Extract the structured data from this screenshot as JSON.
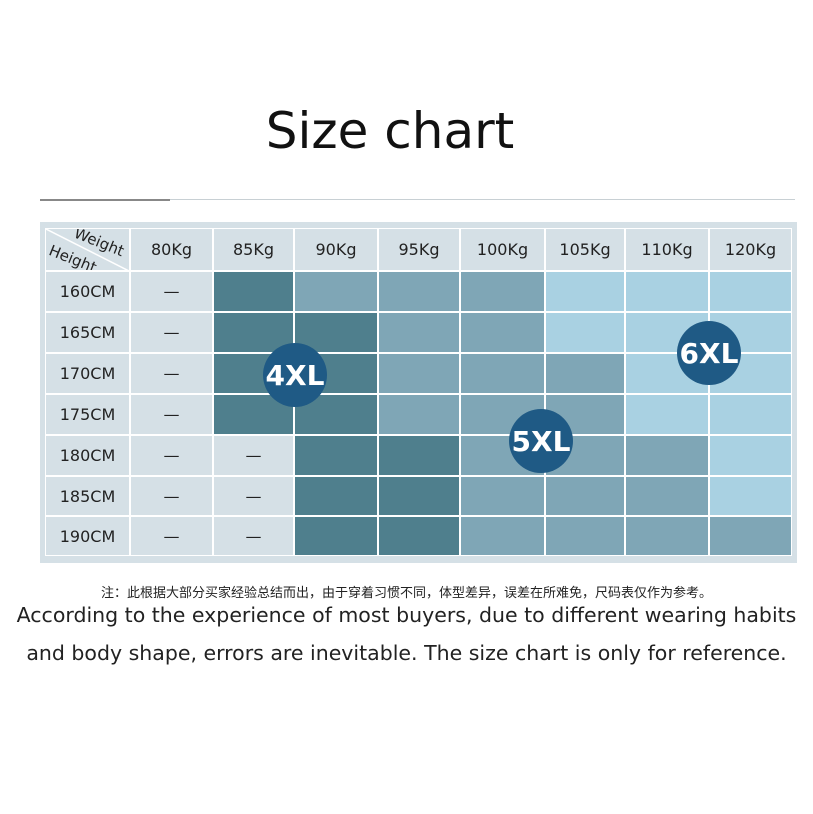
{
  "title": "Size chart",
  "table": {
    "corner": {
      "top": "Weight",
      "bottom": "Height"
    },
    "columns": [
      "80Kg",
      "85Kg",
      "90Kg",
      "95Kg",
      "100Kg",
      "105Kg",
      "110Kg",
      "120Kg"
    ],
    "rows": [
      {
        "label": "160CM",
        "cells": [
          "—",
          null,
          null,
          null,
          null,
          null,
          null,
          null
        ]
      },
      {
        "label": "165CM",
        "cells": [
          "—",
          null,
          null,
          null,
          null,
          null,
          null,
          null
        ]
      },
      {
        "label": "170CM",
        "cells": [
          "—",
          null,
          null,
          null,
          null,
          null,
          null,
          null
        ]
      },
      {
        "label": "175CM",
        "cells": [
          "—",
          null,
          null,
          null,
          null,
          null,
          null,
          null
        ]
      },
      {
        "label": "180CM",
        "cells": [
          "—",
          "—",
          null,
          null,
          null,
          null,
          null,
          null
        ]
      },
      {
        "label": "185CM",
        "cells": [
          "—",
          "—",
          null,
          null,
          null,
          null,
          null,
          null
        ]
      },
      {
        "label": "190CM",
        "cells": [
          "—",
          "—",
          null,
          null,
          null,
          null,
          null,
          null
        ]
      }
    ],
    "badges": [
      "4XL",
      "5XL",
      "6XL"
    ]
  },
  "note_cn": "注：此根据大部分买家经验总结而出，由于穿着习惯不同，体型差异，误差在所难免，尺码表仅作为参考。",
  "note_en": [
    "According to the experience of most buyers, due to different wearing habits",
    "and body shape, errors are inevitable. The size chart is only for reference."
  ]
}
